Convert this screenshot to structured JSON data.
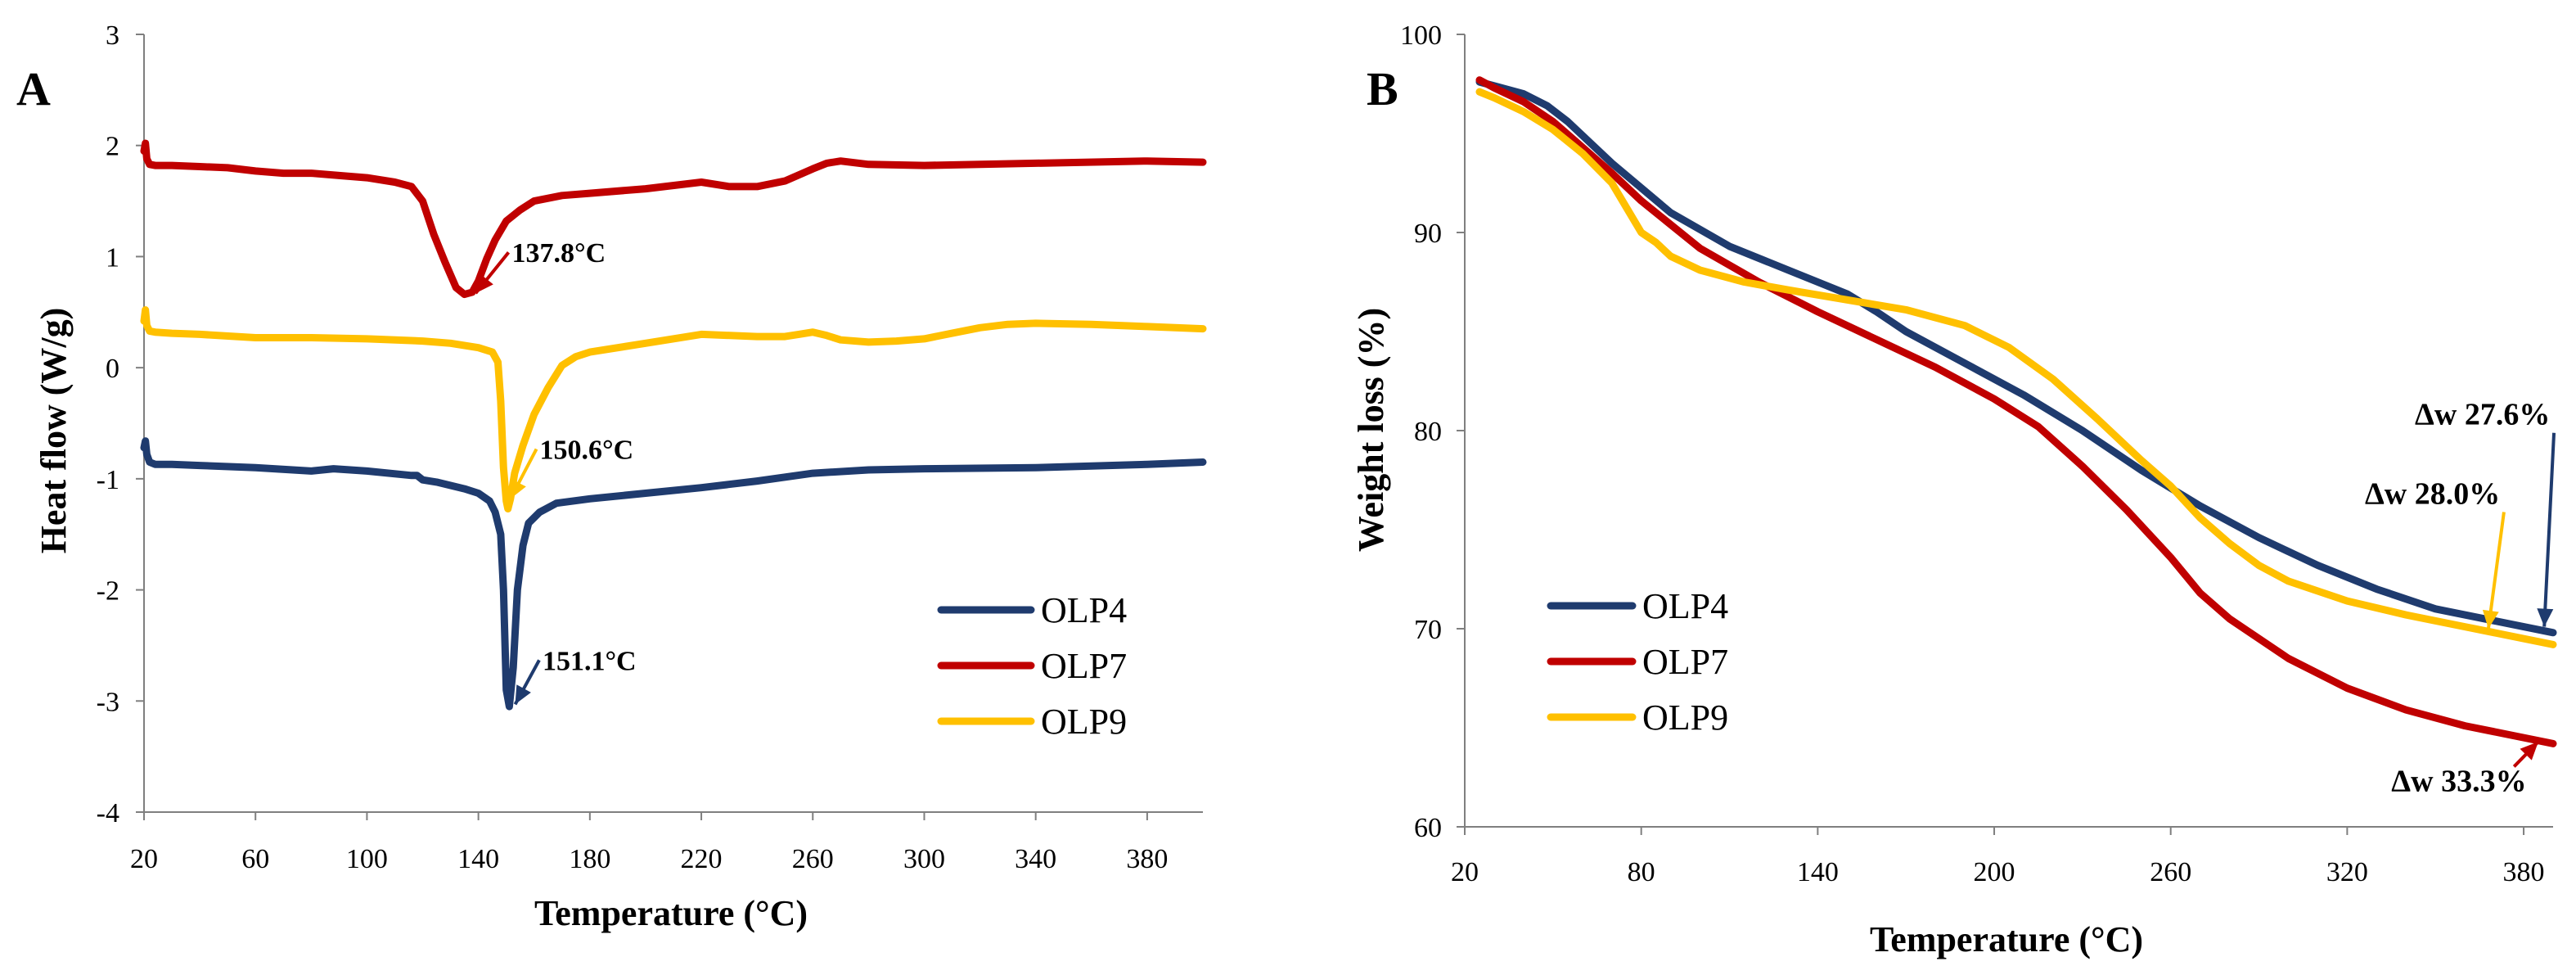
{
  "chart_data": [
    {
      "panel_label": "A",
      "type": "line",
      "title": "",
      "xlabel": "Temperature (°C)",
      "ylabel": "Heat flow (W/g)",
      "xlim": [
        20,
        400
      ],
      "ylim": [
        -4,
        3
      ],
      "xticks": [
        20,
        60,
        100,
        140,
        180,
        220,
        260,
        300,
        340,
        380
      ],
      "yticks": [
        -4,
        -3,
        -2,
        -1,
        0,
        1,
        2,
        3
      ],
      "grid": false,
      "legend_position": "bottom-right",
      "series": [
        {
          "name": "OLP4",
          "color": "#1f3b6e",
          "x": [
            20,
            20.5,
            21,
            22,
            24,
            30,
            40,
            60,
            80,
            88,
            100,
            116,
            118,
            120,
            125,
            130,
            135,
            140,
            144,
            146,
            148,
            149,
            150,
            151.1,
            152.5,
            154,
            156,
            158,
            162,
            168,
            180,
            200,
            220,
            240,
            260,
            280,
            300,
            340,
            380,
            400
          ],
          "y": [
            -0.72,
            -0.66,
            -0.78,
            -0.85,
            -0.87,
            -0.87,
            -0.88,
            -0.9,
            -0.93,
            -0.91,
            -0.93,
            -0.97,
            -0.97,
            -1.01,
            -1.03,
            -1.06,
            -1.09,
            -1.13,
            -1.2,
            -1.3,
            -1.5,
            -2.0,
            -2.9,
            -3.05,
            -2.7,
            -2.0,
            -1.6,
            -1.4,
            -1.3,
            -1.22,
            -1.18,
            -1.13,
            -1.08,
            -1.02,
            -0.95,
            -0.92,
            -0.91,
            -0.9,
            -0.87,
            -0.85
          ]
        },
        {
          "name": "OLP7",
          "color": "#c00000",
          "x": [
            20,
            20.5,
            21,
            22,
            24,
            30,
            40,
            50,
            60,
            70,
            80,
            90,
            100,
            110,
            116,
            120,
            124,
            128,
            132,
            135,
            137.8,
            140,
            143,
            146,
            150,
            155,
            160,
            170,
            180,
            200,
            220,
            230,
            240,
            250,
            260,
            265,
            270,
            280,
            300,
            340,
            380,
            400
          ],
          "y": [
            1.95,
            2.02,
            1.88,
            1.83,
            1.82,
            1.82,
            1.81,
            1.8,
            1.77,
            1.75,
            1.75,
            1.73,
            1.71,
            1.67,
            1.63,
            1.5,
            1.2,
            0.95,
            0.72,
            0.66,
            0.68,
            0.78,
            0.98,
            1.15,
            1.32,
            1.42,
            1.5,
            1.55,
            1.57,
            1.61,
            1.67,
            1.63,
            1.63,
            1.68,
            1.79,
            1.84,
            1.86,
            1.83,
            1.82,
            1.84,
            1.86,
            1.85
          ]
        },
        {
          "name": "OLP9",
          "color": "#ffc000",
          "x": [
            20,
            20.5,
            21,
            22,
            24,
            30,
            40,
            60,
            80,
            100,
            120,
            130,
            140,
            145,
            147,
            148,
            149,
            150,
            150.6,
            151.5,
            153,
            156,
            160,
            165,
            170,
            175,
            180,
            200,
            220,
            240,
            250,
            255,
            260,
            265,
            270,
            280,
            290,
            300,
            310,
            320,
            330,
            340,
            360,
            380,
            400
          ],
          "y": [
            0.42,
            0.52,
            0.38,
            0.33,
            0.32,
            0.31,
            0.3,
            0.27,
            0.27,
            0.26,
            0.24,
            0.22,
            0.18,
            0.14,
            0.05,
            -0.3,
            -0.9,
            -1.2,
            -1.27,
            -1.18,
            -0.95,
            -0.7,
            -0.42,
            -0.18,
            0.02,
            0.1,
            0.14,
            0.22,
            0.3,
            0.28,
            0.28,
            0.3,
            0.32,
            0.29,
            0.25,
            0.23,
            0.24,
            0.26,
            0.31,
            0.36,
            0.39,
            0.4,
            0.39,
            0.37,
            0.35
          ]
        }
      ],
      "annotations": [
        {
          "text": "137.8°C",
          "x": 152,
          "y": 0.95,
          "arrow_to": [
            139,
            0.67
          ],
          "color": "#c00000"
        },
        {
          "text": "150.6°C",
          "x": 162,
          "y": -0.82,
          "arrow_to": [
            151.5,
            -1.18
          ],
          "color": "#ffc000"
        },
        {
          "text": "151.1°C",
          "x": 163,
          "y": -2.72,
          "arrow_to": [
            153.2,
            -3.03
          ],
          "color": "#1f3b6e"
        }
      ]
    },
    {
      "panel_label": "B",
      "type": "line",
      "title": "",
      "xlabel": "Temperature (°C)",
      "ylabel": "Weight loss (%)",
      "xlim": [
        20,
        390
      ],
      "ylim": [
        60,
        100
      ],
      "xticks": [
        20,
        80,
        140,
        200,
        260,
        320,
        380
      ],
      "yticks": [
        60,
        70,
        80,
        90,
        100
      ],
      "grid": false,
      "legend_position": "bottom-left",
      "series": [
        {
          "name": "OLP4",
          "color": "#1f3b6e",
          "x": [
            25,
            30,
            40,
            48,
            55,
            70,
            90,
            110,
            130,
            150,
            160,
            170,
            190,
            210,
            230,
            250,
            270,
            290,
            310,
            330,
            350,
            370,
            390
          ],
          "y": [
            97.6,
            97.4,
            97.0,
            96.4,
            95.6,
            93.5,
            91.0,
            89.3,
            88.1,
            86.9,
            86.0,
            85.0,
            83.4,
            81.8,
            80.0,
            78.0,
            76.2,
            74.6,
            73.2,
            72.0,
            71.0,
            70.4,
            69.8
          ]
        },
        {
          "name": "OLP7",
          "color": "#c00000",
          "x": [
            25,
            30,
            40,
            50,
            60,
            70,
            80,
            100,
            120,
            140,
            160,
            180,
            200,
            215,
            230,
            245,
            260,
            270,
            280,
            300,
            320,
            340,
            360,
            380,
            390
          ],
          "y": [
            97.7,
            97.3,
            96.6,
            95.6,
            94.3,
            93.0,
            91.6,
            89.2,
            87.5,
            86.0,
            84.6,
            83.2,
            81.6,
            80.2,
            78.2,
            76.0,
            73.6,
            71.8,
            70.5,
            68.5,
            67.0,
            65.9,
            65.1,
            64.5,
            64.2
          ]
        },
        {
          "name": "OLP9",
          "color": "#ffc000",
          "x": [
            25,
            30,
            40,
            50,
            60,
            70,
            80,
            85,
            90,
            100,
            115,
            130,
            150,
            170,
            190,
            205,
            220,
            235,
            250,
            260,
            270,
            280,
            290,
            300,
            320,
            340,
            360,
            380,
            390
          ],
          "y": [
            97.1,
            96.8,
            96.1,
            95.2,
            94.0,
            92.5,
            90.0,
            89.5,
            88.8,
            88.1,
            87.5,
            87.1,
            86.6,
            86.1,
            85.3,
            84.2,
            82.6,
            80.6,
            78.5,
            77.2,
            75.6,
            74.3,
            73.2,
            72.4,
            71.4,
            70.7,
            70.1,
            69.5,
            69.2
          ]
        }
      ],
      "annotations": [
        {
          "text": "Δw 27.6%",
          "x": 343,
          "y": 80.3,
          "arrow_to": [
            387,
            70.1
          ],
          "color": "#1f3b6e"
        },
        {
          "text": "Δw 28.0%",
          "x": 326,
          "y": 76.3,
          "arrow_to": [
            368,
            70.0
          ],
          "color": "#ffc000"
        },
        {
          "text": "Δw 33.3%",
          "x": 335,
          "y": 61.8,
          "arrow_to": [
            385,
            64.3
          ],
          "color": "#c00000"
        }
      ]
    }
  ]
}
